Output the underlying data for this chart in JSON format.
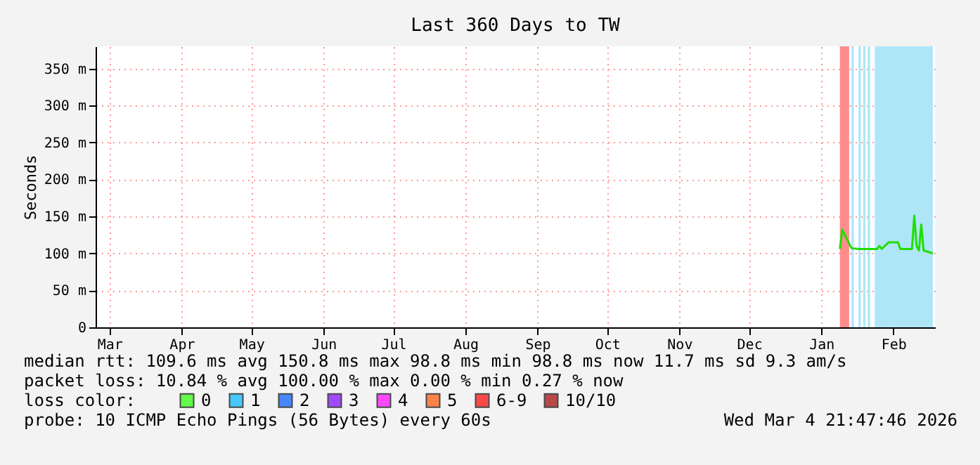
{
  "chart_data": {
    "type": "line",
    "title": "Last 360 Days to TW",
    "ylabel": "Seconds",
    "xlim": [
      "2025-03-09",
      "2026-03-04T21:47"
    ],
    "ylim": [
      0,
      380
    ],
    "xticks": [
      {
        "value": "2025-03-15",
        "label": "Mar"
      },
      {
        "value": "2025-04-15",
        "label": "Apr"
      },
      {
        "value": "2025-05-15",
        "label": "May"
      },
      {
        "value": "2025-06-15",
        "label": "Jun"
      },
      {
        "value": "2025-07-15",
        "label": "Jul"
      },
      {
        "value": "2025-08-15",
        "label": "Aug"
      },
      {
        "value": "2025-09-15",
        "label": "Sep"
      },
      {
        "value": "2025-10-15",
        "label": "Oct"
      },
      {
        "value": "2025-11-15",
        "label": "Nov"
      },
      {
        "value": "2025-12-15",
        "label": "Dec"
      },
      {
        "value": "2026-01-15",
        "label": "Jan"
      },
      {
        "value": "2026-02-15",
        "label": "Feb"
      }
    ],
    "yticks": [
      0,
      {
        "value": 50,
        "label": "50 m"
      },
      {
        "value": 100,
        "label": "100 m"
      },
      {
        "value": 150,
        "label": "150 m"
      },
      {
        "value": 200,
        "label": "200 m"
      },
      {
        "value": 250,
        "label": "250 m"
      },
      {
        "value": 300,
        "label": "300 m"
      },
      {
        "value": 350,
        "label": "350 m"
      }
    ],
    "grid": true,
    "legend": "bottom",
    "legend_title": "loss color:",
    "line_style": "solid",
    "series": [
      {
        "color": "#22dd00",
        "x": [
          "2026-01-23",
          "2026-01-24",
          "2026-01-28",
          "2026-01-31",
          "2026-02-08",
          "2026-02-09",
          "2026-02-10",
          "2026-02-13",
          "2026-02-17",
          "2026-02-18",
          "2026-02-23",
          "2026-02-24",
          "2026-02-25",
          "2026-02-26",
          "2026-02-27",
          "2026-02-28",
          "2026-03-04"
        ],
        "values": [
          106,
          132,
          107,
          106,
          106,
          110,
          106,
          115,
          115,
          106,
          106,
          151,
          110,
          104,
          139,
          104,
          100
        ]
      },
      {
        "name": "0",
        "color": "#26ff00"
      },
      {
        "name": "1",
        "color": "#00b8ff"
      },
      {
        "name": "2",
        "color": "#0059ff"
      },
      {
        "name": "3",
        "color": "#7e00ff"
      },
      {
        "name": "4",
        "color": "#ff00ff"
      },
      {
        "name": "5",
        "color": "#ff5500"
      },
      {
        "name": "6-9",
        "color": "#ff0000"
      },
      {
        "name": "10/10",
        "color": "#a10000"
      }
    ],
    "bands": [
      {
        "axis": "x",
        "from": "2026-01-23",
        "to": "2026-01-27",
        "color": "#ff8c8c"
      },
      {
        "axis": "x",
        "from": "2026-01-28",
        "to": "2026-01-29",
        "color": "#aee6f8"
      },
      {
        "axis": "x",
        "from": "2026-01-31",
        "to": "2026-02-01",
        "color": "#aee6f8"
      },
      {
        "axis": "x",
        "from": "2026-02-02",
        "to": "2026-02-03",
        "color": "#aee6f8"
      },
      {
        "axis": "x",
        "from": "2026-02-04",
        "to": "2026-02-05",
        "color": "#aee6f8"
      },
      {
        "axis": "x",
        "from": "2026-02-07",
        "to": "2026-03-04",
        "color": "#aee6f8"
      }
    ],
    "annotations": [
      "median rtt:  109.6 ms avg  150.8 ms max  98.8 ms min  98.8 ms now  11.7 ms sd  9.3  am/s",
      "packet loss: 10.84 % avg  100.00 % max  0.00 % min  0.27 % now",
      "probe:       10 ICMP Echo Pings (56 Bytes) every 60s",
      "Wed Mar  4 21:47:46 2026"
    ]
  }
}
